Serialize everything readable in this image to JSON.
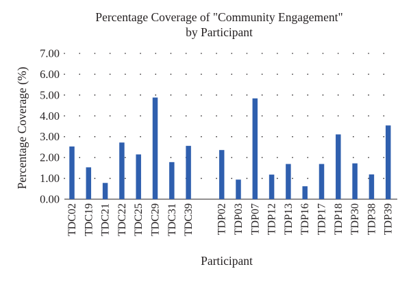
{
  "chart_data": {
    "type": "bar",
    "title_lines": [
      "Percentage Coverage of \"Community Engagement\"",
      "by Participant"
    ],
    "xlabel": "Participant",
    "ylabel": "Percentage Coverage (%)",
    "ylim": [
      0,
      7
    ],
    "yticks": [
      "0.00",
      "1.00",
      "2.00",
      "3.00",
      "4.00",
      "5.00",
      "6.00",
      "7.00"
    ],
    "grid": true,
    "bar_color": "#2f5fae",
    "groups": [
      {
        "categories": [
          "TDC02",
          "TDC19",
          "TDC21",
          "TDC22",
          "TDC25",
          "TDC29",
          "TDC31",
          "TDC39"
        ],
        "values": [
          2.53,
          1.53,
          0.78,
          2.72,
          2.15,
          4.88,
          1.78,
          2.56
        ]
      },
      {
        "categories": [
          "TDP02",
          "TDP03",
          "TDP07",
          "TDP12",
          "TDP13",
          "TDP16",
          "TDP17",
          "TDP18",
          "TDP30",
          "TDP38",
          "TDP39"
        ],
        "values": [
          2.36,
          0.94,
          4.84,
          1.18,
          1.69,
          0.62,
          1.69,
          3.11,
          1.72,
          1.19,
          3.54
        ]
      }
    ]
  }
}
